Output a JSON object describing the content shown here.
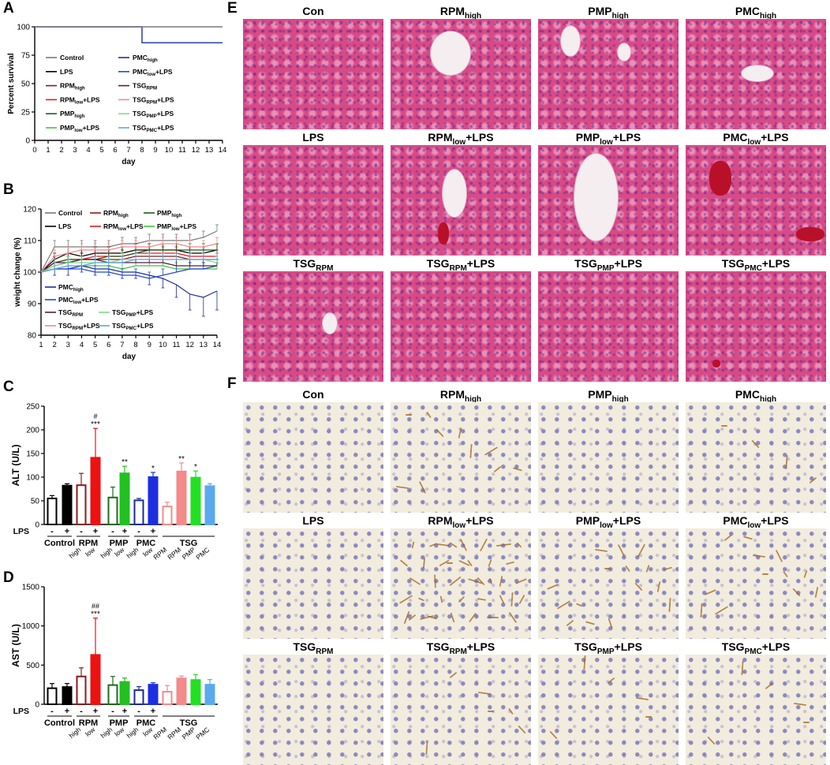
{
  "panel_letters": [
    "A",
    "B",
    "C",
    "D",
    "E",
    "F"
  ],
  "chart_data": [
    {
      "panel": "A",
      "type": "line",
      "step": true,
      "xlabel": "day",
      "ylabel": "Percent survival",
      "xlim": [
        0,
        14
      ],
      "ylim": [
        0,
        100
      ],
      "xticks": [
        "0",
        "1",
        "2",
        "3",
        "4",
        "5",
        "6",
        "7",
        "8",
        "9",
        "10",
        "11",
        "12",
        "13",
        "14"
      ],
      "yticks": [
        "0",
        "25",
        "50",
        "75",
        "100"
      ],
      "x": [
        0,
        8,
        14
      ],
      "series": [
        {
          "name": "PMChigh",
          "label_main": "PMC",
          "label_sub": "high",
          "color": "#1f2d99",
          "values": [
            100,
            86,
            86
          ]
        },
        {
          "name": "Control",
          "label_main": "Control",
          "label_sub": "",
          "color": "#7a7a7a",
          "values": [
            100,
            100,
            100
          ]
        }
      ],
      "legend": {
        "placement": "center",
        "columns": [
          [
            {
              "main": "Control",
              "sub": "",
              "tail": "",
              "color": "#7a7a7a"
            },
            {
              "main": "LPS",
              "sub": "",
              "tail": "",
              "color": "#000000"
            },
            {
              "main": "RPM",
              "sub": "high",
              "tail": "",
              "color": "#8b1a1a"
            },
            {
              "main": "RPM",
              "sub": "low",
              "tail": "+LPS",
              "color": "#e31a1c"
            },
            {
              "main": "PMP",
              "sub": "high",
              "tail": "",
              "color": "#1e5a1e"
            },
            {
              "main": "PMP",
              "sub": "low",
              "tail": "+LPS",
              "color": "#3ec63e"
            }
          ],
          [
            {
              "main": "PMC",
              "sub": "high",
              "tail": "",
              "color": "#1f2d99"
            },
            {
              "main": "PMC",
              "sub": "low",
              "tail": "+LPS",
              "color": "#2348d8"
            },
            {
              "main": "TSG",
              "sub": "RPM",
              "tail": "",
              "color": "#5a1a40"
            },
            {
              "main": "TSG",
              "sub": "RPM",
              "tail": "+LPS",
              "color": "#f4878a"
            },
            {
              "main": "TSG",
              "sub": "PMP",
              "tail": "+LPS",
              "color": "#7ee07e"
            },
            {
              "main": "TSG",
              "sub": "PMC",
              "tail": "+LPS",
              "color": "#5aa9ee"
            }
          ]
        ]
      }
    },
    {
      "panel": "B",
      "type": "line",
      "xlabel": "day",
      "ylabel": "weight change (%)",
      "xlim": [
        1,
        14
      ],
      "ylim": [
        80,
        120
      ],
      "xticks": [
        "1",
        "2",
        "3",
        "4",
        "5",
        "6",
        "7",
        "8",
        "9",
        "10",
        "11",
        "12",
        "13",
        "14"
      ],
      "yticks": [
        "80",
        "90",
        "100",
        "110",
        "120"
      ],
      "x": [
        1,
        2,
        3,
        4,
        5,
        6,
        7,
        8,
        9,
        10,
        11,
        12,
        13,
        14
      ],
      "series": [
        {
          "name": "Control",
          "color": "#7a7a7a",
          "values": [
            100,
            108,
            108,
            108,
            108,
            108,
            109,
            109,
            110,
            110,
            110,
            110,
            111,
            113
          ],
          "error": [
            0,
            2,
            2,
            2,
            2,
            2,
            2,
            2,
            2,
            2,
            2,
            2,
            2,
            2
          ]
        },
        {
          "name": "LPS",
          "color": "#000000",
          "values": [
            100,
            104,
            106,
            105,
            106,
            106,
            106,
            107,
            107,
            107,
            107,
            106,
            106,
            107
          ],
          "error": [
            0,
            2,
            2,
            2,
            2,
            2,
            2,
            2,
            2,
            2,
            2,
            2,
            2,
            2
          ]
        },
        {
          "name": "RPMhigh",
          "color": "#8b1a1a",
          "values": [
            100,
            102,
            103,
            104,
            104,
            104,
            104,
            105,
            105,
            105,
            105,
            104,
            104,
            104
          ],
          "error": [
            0,
            2,
            2,
            2,
            2,
            2,
            2,
            2,
            2,
            2,
            2,
            2,
            2,
            2
          ]
        },
        {
          "name": "RPMlow+LPS",
          "color": "#e31a1c",
          "values": [
            100,
            103,
            104,
            104,
            105,
            105,
            105,
            106,
            106,
            106,
            106,
            105,
            105,
            105
          ],
          "error": [
            0,
            2,
            2,
            2,
            2,
            2,
            2,
            2,
            2,
            2,
            2,
            2,
            2,
            2
          ]
        },
        {
          "name": "PMPhigh",
          "color": "#1e5a1e",
          "values": [
            100,
            103,
            104,
            104,
            104,
            105,
            105,
            106,
            107,
            107,
            107,
            107,
            107,
            107
          ],
          "error": [
            0,
            2,
            2,
            2,
            2,
            2,
            2,
            2,
            2,
            2,
            2,
            2,
            2,
            2
          ]
        },
        {
          "name": "PMPlow+LPS",
          "color": "#3ec63e",
          "values": [
            100,
            101,
            102,
            102,
            102,
            102,
            101,
            102,
            102,
            102,
            101,
            101,
            101,
            101
          ],
          "error": [
            0,
            2,
            2,
            2,
            2,
            2,
            2,
            2,
            2,
            2,
            2,
            2,
            2,
            2
          ]
        },
        {
          "name": "PMChigh",
          "color": "#1f2d99",
          "values": [
            100,
            101,
            101,
            102,
            101,
            101,
            100,
            100,
            99,
            98,
            96,
            93,
            92,
            94
          ],
          "error": [
            0,
            2,
            2,
            2,
            2,
            2,
            2,
            2,
            3,
            3,
            4,
            5,
            6,
            6
          ]
        },
        {
          "name": "PMClow+LPS",
          "color": "#2348d8",
          "values": [
            100,
            101,
            101,
            101,
            100,
            100,
            99,
            99,
            98,
            99,
            100,
            101,
            101,
            102
          ],
          "error": [
            0,
            2,
            2,
            2,
            2,
            2,
            2,
            2,
            2,
            2,
            2,
            2,
            2,
            2
          ]
        },
        {
          "name": "TSGRPM",
          "color": "#5a1a40",
          "values": [
            100,
            103,
            103,
            104,
            104,
            103,
            103,
            103,
            103,
            103,
            102,
            102,
            102,
            102
          ],
          "error": [
            0,
            2,
            2,
            2,
            2,
            2,
            2,
            2,
            2,
            2,
            2,
            2,
            2,
            2
          ]
        },
        {
          "name": "TSGRPM+LPS",
          "color": "#f4878a",
          "values": [
            100,
            105,
            106,
            107,
            107,
            107,
            108,
            108,
            108,
            109,
            109,
            108,
            108,
            109
          ],
          "error": [
            0,
            2,
            2,
            2,
            2,
            2,
            2,
            2,
            2,
            2,
            2,
            2,
            2,
            2
          ]
        },
        {
          "name": "TSGPMP+LPS",
          "color": "#7ee07e",
          "values": [
            100,
            102,
            103,
            103,
            103,
            103,
            104,
            104,
            104,
            104,
            104,
            104,
            104,
            103
          ],
          "error": [
            0,
            2,
            2,
            2,
            2,
            2,
            2,
            2,
            2,
            2,
            2,
            2,
            2,
            2
          ]
        },
        {
          "name": "TSGPMC+LPS",
          "color": "#5aa9ee",
          "values": [
            100,
            101,
            102,
            102,
            103,
            103,
            103,
            104,
            104,
            104,
            104,
            104,
            104,
            104
          ],
          "error": [
            0,
            2,
            2,
            2,
            2,
            2,
            2,
            2,
            2,
            2,
            2,
            2,
            2,
            2
          ]
        }
      ],
      "legend": {
        "placement": "top-and-bottom",
        "top": [
          {
            "main": "Control",
            "sub": "",
            "tail": "",
            "color": "#7a7a7a"
          },
          {
            "main": "RPM",
            "sub": "high",
            "tail": "",
            "color": "#8b1a1a"
          },
          {
            "main": "PMP",
            "sub": "high",
            "tail": "",
            "color": "#1e5a1e"
          },
          {
            "main": "LPS",
            "sub": "",
            "tail": "",
            "color": "#000000"
          },
          {
            "main": "RPM",
            "sub": "low",
            "tail": "+LPS",
            "color": "#e31a1c"
          },
          {
            "main": "PMP",
            "sub": "low",
            "tail": "+LPS",
            "color": "#3ec63e"
          }
        ],
        "bottom": [
          {
            "main": "PMC",
            "sub": "high",
            "tail": "",
            "color": "#1f2d99"
          },
          {
            "main": "PMC",
            "sub": "low",
            "tail": "+LPS",
            "color": "#2348d8"
          },
          {
            "main": "TSG",
            "sub": "RPM",
            "tail": "",
            "color": "#5a1a40"
          },
          {
            "main": "TSG",
            "sub": "PMP",
            "tail": "+LPS",
            "color": "#7ee07e"
          },
          {
            "main": "TSG",
            "sub": "RPM",
            "tail": "+LPS",
            "color": "#f4878a"
          },
          {
            "main": "TSG",
            "sub": "PMC",
            "tail": "+LPS",
            "color": "#5aa9ee"
          }
        ]
      }
    },
    {
      "panel": "C",
      "type": "bar",
      "ylabel": "ALT (U/L)",
      "ylim": [
        0,
        250
      ],
      "yticks": [
        "0",
        "50",
        "100",
        "150",
        "200",
        "250"
      ],
      "lps_label": "LPS",
      "lps_signs": [
        "-",
        "+",
        "-",
        "+",
        "-",
        "+",
        "-",
        "+"
      ],
      "groups": [
        "Control",
        "RPM",
        "PMP",
        "PMC",
        "TSG"
      ],
      "sublabels": [
        "high",
        "low",
        "high",
        "low",
        "high",
        "low",
        "RPM",
        "RPM",
        "PMP",
        "PMC"
      ],
      "bars": [
        {
          "name": "Control",
          "value": 55,
          "error": 6,
          "color": "#000000",
          "filled": false
        },
        {
          "name": "LPS",
          "value": 82,
          "error": 4,
          "color": "#000000",
          "filled": true
        },
        {
          "name": "RPMhigh",
          "value": 83,
          "error": 25,
          "color": "#8b1a1a",
          "filled": false
        },
        {
          "name": "RPMlow+LPS",
          "value": 141,
          "error": 62,
          "color": "#ee1111",
          "filled": true,
          "annotation_top": "#",
          "annotation": "***"
        },
        {
          "name": "PMPhigh",
          "value": 57,
          "error": 22,
          "color": "#1e6a1e",
          "filled": false
        },
        {
          "name": "PMPlow+LPS",
          "value": 108,
          "error": 15,
          "color": "#22c022",
          "filled": true,
          "annotation": "**"
        },
        {
          "name": "PMChigh",
          "value": 51,
          "error": 4,
          "color": "#1a2a99",
          "filled": false
        },
        {
          "name": "PMClow+LPS",
          "value": 100,
          "error": 10,
          "color": "#1c2ee0",
          "filled": true,
          "annotation": "*"
        },
        {
          "name": "TSGRPM",
          "value": 38,
          "error": 9,
          "color": "#f48a8a",
          "filled": false
        },
        {
          "name": "TSGRPM+LPS",
          "value": 112,
          "error": 18,
          "color": "#f48a8a",
          "filled": true,
          "annotation": "**"
        },
        {
          "name": "TSGPMP+LPS",
          "value": 99,
          "error": 14,
          "color": "#22e022",
          "filled": true,
          "annotation": "*"
        },
        {
          "name": "TSGPMC+LPS",
          "value": 81,
          "error": 5,
          "color": "#5aa9ee",
          "filled": true
        }
      ]
    },
    {
      "panel": "D",
      "type": "bar",
      "ylabel": "AST (U/L)",
      "ylim": [
        0,
        1500
      ],
      "yticks": [
        "0",
        "500",
        "1000",
        "1500"
      ],
      "lps_label": "LPS",
      "lps_signs": [
        "-",
        "+",
        "-",
        "+",
        "-",
        "+",
        "-",
        "+"
      ],
      "groups": [
        "Control",
        "RPM",
        "PMP",
        "PMC",
        "TSG"
      ],
      "sublabels": [
        "high",
        "low",
        "high",
        "low",
        "high",
        "low",
        "RPM",
        "RPM",
        "PMP",
        "PMC"
      ],
      "bars": [
        {
          "name": "Control",
          "value": 205,
          "error": 60,
          "color": "#000000",
          "filled": false
        },
        {
          "name": "LPS",
          "value": 220,
          "error": 45,
          "color": "#000000",
          "filled": true
        },
        {
          "name": "RPMhigh",
          "value": 355,
          "error": 110,
          "color": "#8b1a1a",
          "filled": false
        },
        {
          "name": "RPMlow+LPS",
          "value": 630,
          "error": 470,
          "color": "#ee1111",
          "filled": true,
          "annotation_top": "##",
          "annotation": "***"
        },
        {
          "name": "PMPhigh",
          "value": 245,
          "error": 110,
          "color": "#1e6a1e",
          "filled": false
        },
        {
          "name": "PMPlow+LPS",
          "value": 285,
          "error": 50,
          "color": "#22c022",
          "filled": true
        },
        {
          "name": "PMChigh",
          "value": 180,
          "error": 45,
          "color": "#1a2a99",
          "filled": false
        },
        {
          "name": "PMClow+LPS",
          "value": 250,
          "error": 25,
          "color": "#1c2ee0",
          "filled": true
        },
        {
          "name": "TSGRPM",
          "value": 160,
          "error": 80,
          "color": "#f48a8a",
          "filled": false
        },
        {
          "name": "TSGRPM+LPS",
          "value": 330,
          "error": 30,
          "color": "#f48a8a",
          "filled": true
        },
        {
          "name": "TSGPMP+LPS",
          "value": 310,
          "error": 70,
          "color": "#22e022",
          "filled": true
        },
        {
          "name": "TSGPMC+LPS",
          "value": 250,
          "error": 65,
          "color": "#5aa9ee",
          "filled": true
        }
      ]
    }
  ],
  "histology_he": [
    {
      "main": "Con",
      "sub": "",
      "tail": ""
    },
    {
      "main": "RPM",
      "sub": "high",
      "tail": ""
    },
    {
      "main": "PMP",
      "sub": "high",
      "tail": ""
    },
    {
      "main": "PMC",
      "sub": "high",
      "tail": ""
    },
    {
      "main": "LPS",
      "sub": "",
      "tail": ""
    },
    {
      "main": "RPM",
      "sub": "low",
      "tail": "+LPS"
    },
    {
      "main": "PMP",
      "sub": "low",
      "tail": "+LPS"
    },
    {
      "main": "PMC",
      "sub": "low",
      "tail": "+LPS"
    },
    {
      "main": "TSG",
      "sub": "RPM",
      "tail": ""
    },
    {
      "main": "TSG",
      "sub": "RPM",
      "tail": "+LPS"
    },
    {
      "main": "TSG",
      "sub": "PMP",
      "tail": "+LPS"
    },
    {
      "main": "TSG",
      "sub": "PMC",
      "tail": "+LPS"
    }
  ],
  "histology_ihc": [
    {
      "main": "Con",
      "sub": "",
      "tail": ""
    },
    {
      "main": "RPM",
      "sub": "high",
      "tail": ""
    },
    {
      "main": "PMP",
      "sub": "high",
      "tail": ""
    },
    {
      "main": "PMC",
      "sub": "high",
      "tail": ""
    },
    {
      "main": "LPS",
      "sub": "",
      "tail": ""
    },
    {
      "main": "RPM",
      "sub": "low",
      "tail": "+LPS"
    },
    {
      "main": "PMP",
      "sub": "low",
      "tail": "+LPS"
    },
    {
      "main": "PMC",
      "sub": "low",
      "tail": "+LPS"
    },
    {
      "main": "TSG",
      "sub": "RPM",
      "tail": ""
    },
    {
      "main": "TSG",
      "sub": "RPM",
      "tail": "+LPS"
    },
    {
      "main": "TSG",
      "sub": "PMP",
      "tail": "+LPS"
    },
    {
      "main": "TSG",
      "sub": "PMC",
      "tail": "+LPS"
    }
  ]
}
